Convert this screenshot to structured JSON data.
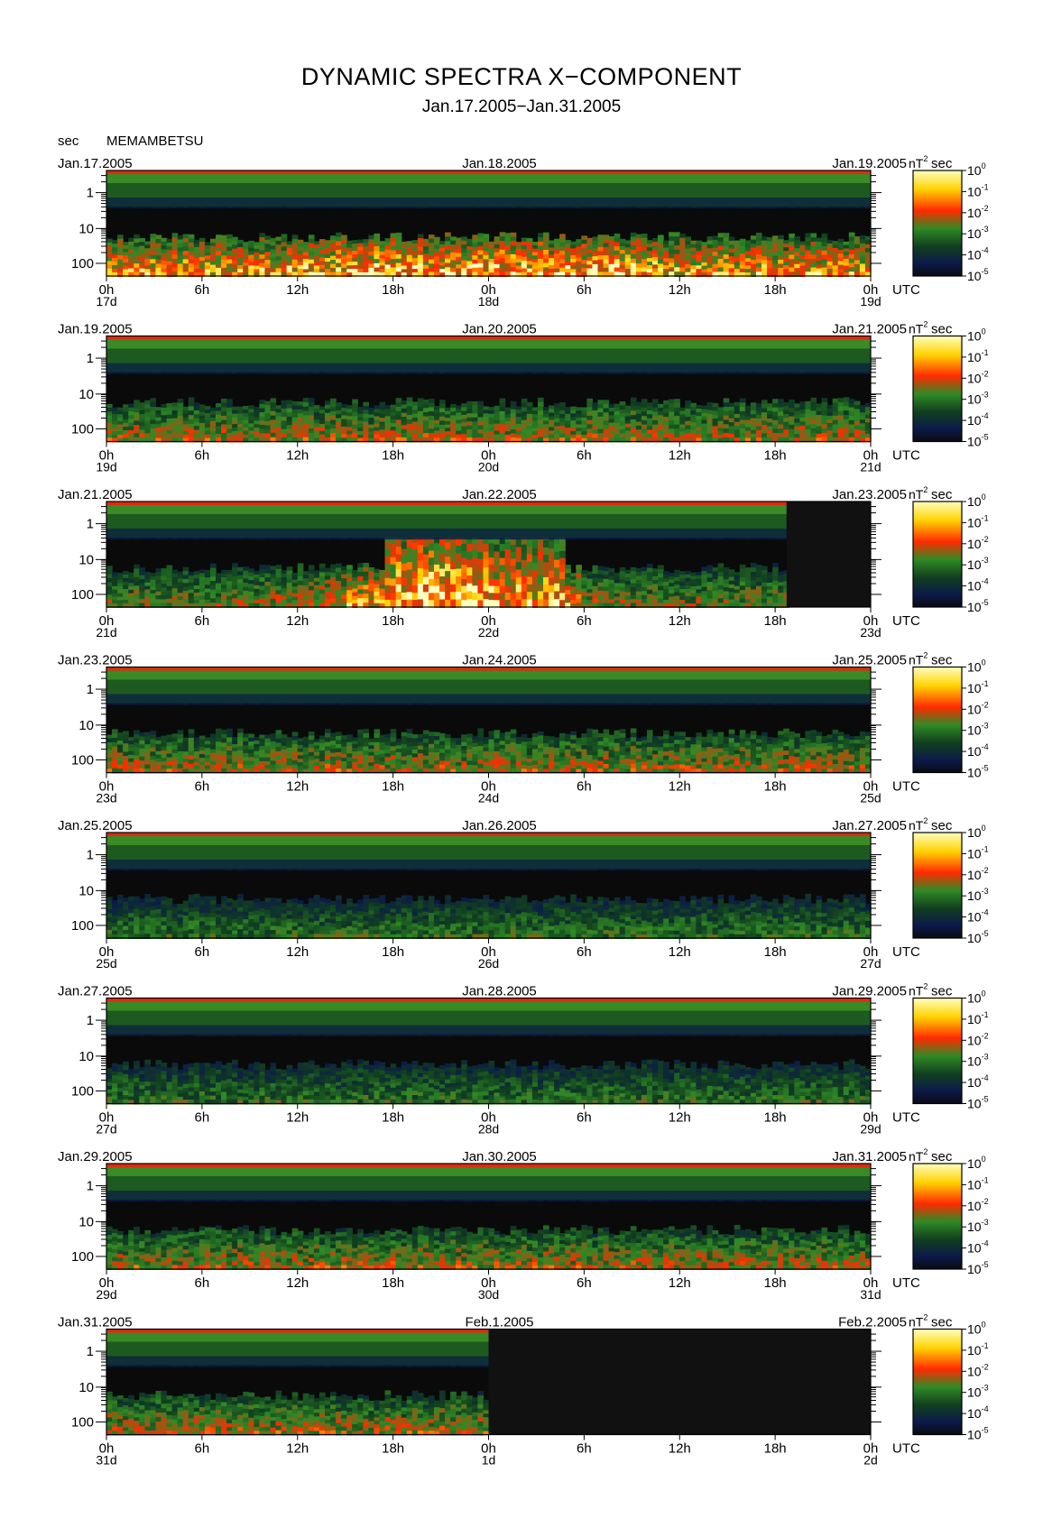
{
  "title": "DYNAMIC SPECTRA X−COMPONENT",
  "subtitle": "Jan.17.2005−Jan.31.2005",
  "y_unit": "sec",
  "station": "MEMAMBETSU",
  "power_unit_base": "nT",
  "power_unit_exp": "2",
  "power_unit_tail": "sec",
  "time_unit": "UTC",
  "colors": {
    "background": "#0a0a0a",
    "colorscale": [
      "#0a0a12",
      "#0b1a4a",
      "#113f1f",
      "#2f8a25",
      "#ff2a00",
      "#ffd200",
      "#ffffc0"
    ]
  },
  "chart_data": {
    "type": "heatmap",
    "y_axis": {
      "scale": "log",
      "label": "sec",
      "ticks": [
        "1",
        "10",
        "100"
      ]
    },
    "colorbar": {
      "scale": "log",
      "ticks": [
        {
          "base": "10",
          "exp": "0"
        },
        {
          "base": "10",
          "exp": "-1"
        },
        {
          "base": "10",
          "exp": "-2"
        },
        {
          "base": "10",
          "exp": "-3"
        },
        {
          "base": "10",
          "exp": "-4"
        },
        {
          "base": "10",
          "exp": "-5"
        }
      ]
    },
    "x_ticks": [
      "0h",
      "6h",
      "12h",
      "18h",
      "0h",
      "6h",
      "12h",
      "18h",
      "0h"
    ],
    "panels": [
      {
        "start_date": "Jan.17.2005",
        "mid_date": "Jan.18.2005",
        "end_date": "Jan.19.2005",
        "day_labels": [
          "17d",
          "18d",
          "19d"
        ],
        "activity": "high"
      },
      {
        "start_date": "Jan.19.2005",
        "mid_date": "Jan.20.2005",
        "end_date": "Jan.21.2005",
        "day_labels": [
          "19d",
          "20d",
          "21d"
        ],
        "activity": "moderate"
      },
      {
        "start_date": "Jan.21.2005",
        "mid_date": "Jan.22.2005",
        "end_date": "Jan.23.2005",
        "day_labels": [
          "21d",
          "22d",
          "23d"
        ],
        "activity": "storm",
        "data_end_fraction": 0.89
      },
      {
        "start_date": "Jan.23.2005",
        "mid_date": "Jan.24.2005",
        "end_date": "Jan.25.2005",
        "day_labels": [
          "23d",
          "24d",
          "25d"
        ],
        "activity": "moderate"
      },
      {
        "start_date": "Jan.25.2005",
        "mid_date": "Jan.26.2005",
        "end_date": "Jan.27.2005",
        "day_labels": [
          "25d",
          "26d",
          "27d"
        ],
        "activity": "low"
      },
      {
        "start_date": "Jan.27.2005",
        "mid_date": "Jan.28.2005",
        "end_date": "Jan.29.2005",
        "day_labels": [
          "27d",
          "28d",
          "29d"
        ],
        "activity": "low"
      },
      {
        "start_date": "Jan.29.2005",
        "mid_date": "Jan.30.2005",
        "end_date": "Jan.31.2005",
        "day_labels": [
          "29d",
          "30d",
          "31d"
        ],
        "activity": "moderate"
      },
      {
        "start_date": "Jan.31.2005",
        "mid_date": "Feb.1.2005",
        "end_date": "Feb.2.2005",
        "day_labels": [
          "31d",
          "1d",
          "2d"
        ],
        "activity": "moderate",
        "data_end_fraction": 0.5
      }
    ]
  }
}
